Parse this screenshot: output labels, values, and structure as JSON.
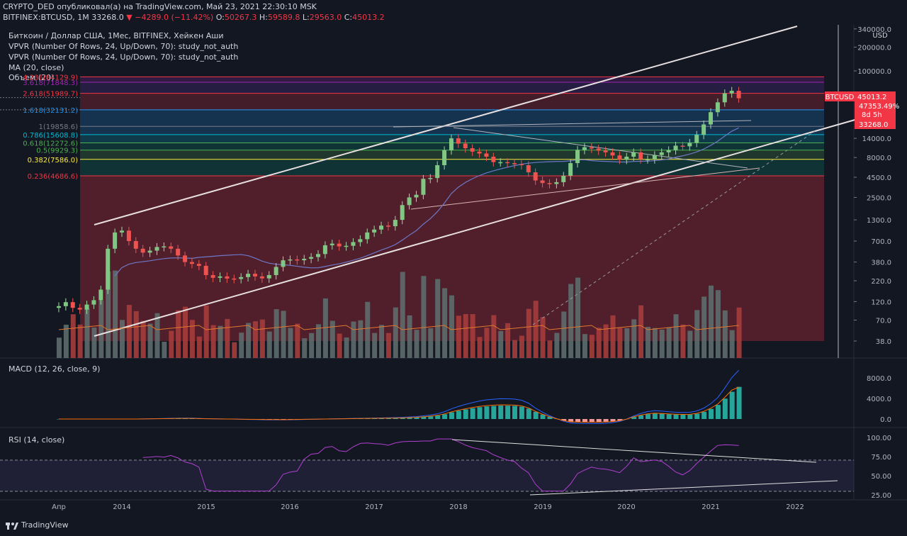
{
  "header": {
    "line1": "CRYPTO_DED опубликовал(а) на TradingView.com, Май 23, 2021 22:30:10 MSK",
    "symbol": "BITFINEX:BTCUSD, 1M",
    "last": "33268.0",
    "change": "−4289.0 (−11.42%)",
    "o": "50267.3",
    "h": "59589.8",
    "l": "29563.0",
    "c": "45013.2"
  },
  "legend": {
    "title": "Биткоин / Доллар США, 1Мес, BITFINEX, Хейкен Аши",
    "vpvr1": "VPVR (Number Of Rows, 24, Up/Down, 70): study_not_auth",
    "vpvr2": "VPVR (Number Of Rows, 24, Up/Down, 70): study_not_auth",
    "ma": "MA (20, close)",
    "volume": "Объем (20)"
  },
  "macd_title": "MACD (12, 26, close, 9)",
  "rsi_title": "RSI (14, close)",
  "branding": "TradingView",
  "price_tag": {
    "symbol": "BTCUSD",
    "price": "45013.2",
    "pct": "47353.49%",
    "countdown": "8d 5h",
    "last": "33268.0"
  },
  "colors": {
    "up": "#26a69a",
    "down": "#ef5350",
    "bg": "#131722"
  },
  "chart_data": {
    "type": "candlestick",
    "y_scale": "log",
    "price_axis": {
      "unit": "USD",
      "ticks": [
        "340000.0",
        "200000.0",
        "100000.0",
        "14000.0",
        "8000.0",
        "4500.0",
        "2500.0",
        "1300.0",
        "700.0",
        "380.0",
        "220.0",
        "120.0",
        "70.0",
        "38.0"
      ]
    },
    "x_axis_labels": [
      "Апр",
      "2014",
      "2015",
      "2016",
      "2017",
      "2018",
      "2019",
      "2020",
      "2021",
      "2022"
    ],
    "fib_levels": [
      {
        "label": "4.236(84129.9)",
        "value": 84129.9
      },
      {
        "label": "3.618(71848.3)",
        "value": 71848.3
      },
      {
        "label": "2.618(51989.7)",
        "value": 51989.7
      },
      {
        "label": "1.618(32131.2)",
        "value": 32131.2
      },
      {
        "label": "1(19858.6)",
        "value": 19858.6
      },
      {
        "label": "0.786(15608.8)",
        "value": 15608.8
      },
      {
        "label": "0.618(12272.6)",
        "value": 12272.6
      },
      {
        "label": "0.5(9929.3)",
        "value": 9929.3
      },
      {
        "label": "0.382(7586.0)",
        "value": 7586.0
      },
      {
        "label": "0.236(4686.6)",
        "value": 4686.6
      }
    ],
    "candles_monthly_approx": [
      {
        "t": "2013-04",
        "o": 100,
        "c": 105
      },
      {
        "t": "2013-05",
        "o": 105,
        "c": 118
      },
      {
        "t": "2013-06",
        "o": 118,
        "c": 100
      },
      {
        "t": "2013-07",
        "o": 100,
        "c": 95
      },
      {
        "t": "2013-08",
        "o": 95,
        "c": 110
      },
      {
        "t": "2013-09",
        "o": 110,
        "c": 125
      },
      {
        "t": "2013-10",
        "o": 125,
        "c": 170
      },
      {
        "t": "2013-11",
        "o": 170,
        "c": 560
      },
      {
        "t": "2013-12",
        "o": 560,
        "c": 900
      },
      {
        "t": "2014-01",
        "o": 900,
        "c": 950
      },
      {
        "t": "2014-02",
        "o": 950,
        "c": 700
      },
      {
        "t": "2014-03",
        "o": 700,
        "c": 560
      },
      {
        "t": "2014-04",
        "o": 560,
        "c": 500
      },
      {
        "t": "2014-05",
        "o": 500,
        "c": 530
      },
      {
        "t": "2014-06",
        "o": 530,
        "c": 590
      },
      {
        "t": "2014-07",
        "o": 590,
        "c": 600
      },
      {
        "t": "2014-08",
        "o": 600,
        "c": 560
      },
      {
        "t": "2014-09",
        "o": 560,
        "c": 460
      },
      {
        "t": "2014-10",
        "o": 460,
        "c": 380
      },
      {
        "t": "2014-11",
        "o": 380,
        "c": 360
      },
      {
        "t": "2014-12",
        "o": 360,
        "c": 340
      },
      {
        "t": "2015-01",
        "o": 340,
        "c": 260
      },
      {
        "t": "2015-02",
        "o": 260,
        "c": 240
      },
      {
        "t": "2015-03",
        "o": 240,
        "c": 250
      },
      {
        "t": "2015-04",
        "o": 250,
        "c": 235
      },
      {
        "t": "2015-05",
        "o": 235,
        "c": 232
      },
      {
        "t": "2015-06",
        "o": 232,
        "c": 245
      },
      {
        "t": "2015-07",
        "o": 245,
        "c": 270
      },
      {
        "t": "2015-08",
        "o": 270,
        "c": 250
      },
      {
        "t": "2015-09",
        "o": 250,
        "c": 236
      },
      {
        "t": "2015-10",
        "o": 236,
        "c": 260
      },
      {
        "t": "2015-11",
        "o": 260,
        "c": 330
      },
      {
        "t": "2015-12",
        "o": 330,
        "c": 400
      },
      {
        "t": "2016-01",
        "o": 400,
        "c": 410
      },
      {
        "t": "2016-02",
        "o": 410,
        "c": 400
      },
      {
        "t": "2016-03",
        "o": 400,
        "c": 418
      },
      {
        "t": "2016-04",
        "o": 418,
        "c": 440
      },
      {
        "t": "2016-05",
        "o": 440,
        "c": 480
      },
      {
        "t": "2016-06",
        "o": 480,
        "c": 620
      },
      {
        "t": "2016-07",
        "o": 620,
        "c": 650
      },
      {
        "t": "2016-08",
        "o": 650,
        "c": 600
      },
      {
        "t": "2016-09",
        "o": 600,
        "c": 610
      },
      {
        "t": "2016-10",
        "o": 610,
        "c": 680
      },
      {
        "t": "2016-11",
        "o": 680,
        "c": 740
      },
      {
        "t": "2016-12",
        "o": 740,
        "c": 900
      },
      {
        "t": "2017-01",
        "o": 900,
        "c": 980
      },
      {
        "t": "2017-02",
        "o": 980,
        "c": 1100
      },
      {
        "t": "2017-03",
        "o": 1100,
        "c": 1080
      },
      {
        "t": "2017-04",
        "o": 1080,
        "c": 1300
      },
      {
        "t": "2017-05",
        "o": 1300,
        "c": 2000
      },
      {
        "t": "2017-06",
        "o": 2000,
        "c": 2500
      },
      {
        "t": "2017-07",
        "o": 2500,
        "c": 2700
      },
      {
        "t": "2017-08",
        "o": 2700,
        "c": 4300
      },
      {
        "t": "2017-09",
        "o": 4300,
        "c": 4400
      },
      {
        "t": "2017-10",
        "o": 4400,
        "c": 6400
      },
      {
        "t": "2017-11",
        "o": 6400,
        "c": 9900
      },
      {
        "t": "2017-12",
        "o": 9900,
        "c": 14000
      },
      {
        "t": "2018-01",
        "o": 14000,
        "c": 12000
      },
      {
        "t": "2018-02",
        "o": 12000,
        "c": 10500
      },
      {
        "t": "2018-03",
        "o": 10500,
        "c": 9500
      },
      {
        "t": "2018-04",
        "o": 9500,
        "c": 9000
      },
      {
        "t": "2018-05",
        "o": 9000,
        "c": 8200
      },
      {
        "t": "2018-06",
        "o": 8200,
        "c": 7000
      },
      {
        "t": "2018-07",
        "o": 7000,
        "c": 7000
      },
      {
        "t": "2018-08",
        "o": 7000,
        "c": 6800
      },
      {
        "t": "2018-09",
        "o": 6800,
        "c": 6600
      },
      {
        "t": "2018-10",
        "o": 6600,
        "c": 6400
      },
      {
        "t": "2018-11",
        "o": 6400,
        "c": 5200
      },
      {
        "t": "2018-12",
        "o": 5200,
        "c": 4100
      },
      {
        "t": "2019-01",
        "o": 4100,
        "c": 3800
      },
      {
        "t": "2019-02",
        "o": 3800,
        "c": 3700
      },
      {
        "t": "2019-03",
        "o": 3700,
        "c": 3900
      },
      {
        "t": "2019-04",
        "o": 3900,
        "c": 4700
      },
      {
        "t": "2019-05",
        "o": 4700,
        "c": 6800
      },
      {
        "t": "2019-06",
        "o": 6800,
        "c": 10000
      },
      {
        "t": "2019-07",
        "o": 10000,
        "c": 10800
      },
      {
        "t": "2019-08",
        "o": 10800,
        "c": 10400
      },
      {
        "t": "2019-09",
        "o": 10400,
        "c": 9800
      },
      {
        "t": "2019-10",
        "o": 9800,
        "c": 9300
      },
      {
        "t": "2019-11",
        "o": 9300,
        "c": 8500
      },
      {
        "t": "2019-12",
        "o": 8500,
        "c": 7500
      },
      {
        "t": "2020-01",
        "o": 7500,
        "c": 8200
      },
      {
        "t": "2020-02",
        "o": 8200,
        "c": 9300
      },
      {
        "t": "2020-03",
        "o": 9300,
        "c": 7600
      },
      {
        "t": "2020-04",
        "o": 7600,
        "c": 7600
      },
      {
        "t": "2020-05",
        "o": 7600,
        "c": 8600
      },
      {
        "t": "2020-06",
        "o": 8600,
        "c": 9300
      },
      {
        "t": "2020-07",
        "o": 9300,
        "c": 9900
      },
      {
        "t": "2020-08",
        "o": 9900,
        "c": 11300
      },
      {
        "t": "2020-09",
        "o": 11300,
        "c": 11100
      },
      {
        "t": "2020-10",
        "o": 11100,
        "c": 12300
      },
      {
        "t": "2020-11",
        "o": 12300,
        "c": 15500
      },
      {
        "t": "2020-12",
        "o": 15500,
        "c": 21000
      },
      {
        "t": "2021-01",
        "o": 21000,
        "c": 30000
      },
      {
        "t": "2021-02",
        "o": 30000,
        "c": 40000
      },
      {
        "t": "2021-03",
        "o": 40000,
        "c": 52000
      },
      {
        "t": "2021-04",
        "o": 52000,
        "c": 56000
      },
      {
        "t": "2021-05",
        "o": 56000,
        "c": 45013
      }
    ],
    "macd": {
      "ticks": [
        "8000.0",
        "4000.0",
        "0.0"
      ]
    },
    "rsi": {
      "ticks": [
        "100.00",
        "75.00",
        "50.00",
        "25.00"
      ],
      "bands": [
        70,
        30
      ]
    }
  }
}
